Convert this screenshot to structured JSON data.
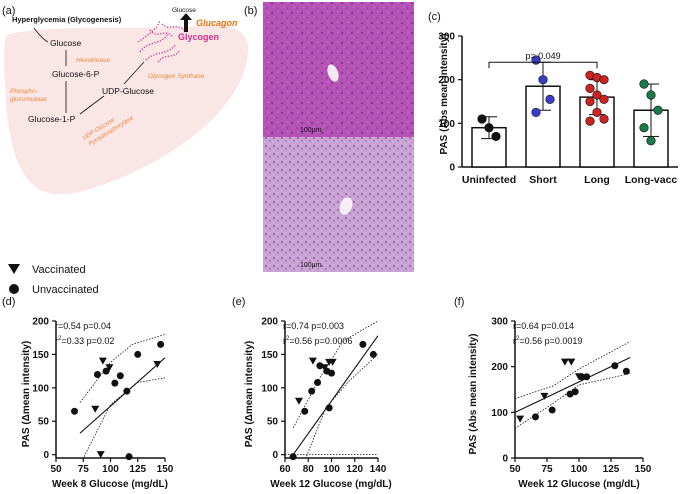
{
  "panel_a": {
    "panel_label": "(a)",
    "title": "Hyperglycemia (Glycogenesis)",
    "glucose_out": "Glucose",
    "glucagon": "Glucagon",
    "glycogen": "Glycogen",
    "glucose": "Glucose",
    "hexokinase": "Hexokinase",
    "g6p": "Glucose-6-P",
    "pgm_1": "Phospho-",
    "pgm_2": "glucomutase",
    "g1p": "Glucose-1-P",
    "udpg": "UDP-Glucose",
    "gs": "Glycogen Synthase",
    "udp_ppase_1": "UDP-Glucose",
    "udp_ppase_2": "Pyrophosphorylase",
    "colors": {
      "liver": "#fbe6e6",
      "enzyme": "#e8883a",
      "glycogen": "#d22f8c",
      "glucagon": "#e8700a"
    }
  },
  "panel_b": {
    "panel_label": "(b)",
    "scale_top": "100µm",
    "scale_bottom": "100µm",
    "colors": {
      "top": "#b552b5",
      "bottom": "#c9a2d4"
    }
  },
  "chart_data": [
    {
      "id": "c",
      "panel_label": "(c)",
      "type": "bar",
      "ylabel": "PAS (Abs mean intensity)",
      "ylim": [
        0,
        300
      ],
      "yticks": [
        0,
        100,
        200,
        300
      ],
      "categories": [
        "Uninfected",
        "Short",
        "Long",
        "Long-vacc"
      ],
      "means": [
        90,
        185,
        160,
        130
      ],
      "sd": [
        25,
        55,
        40,
        60
      ],
      "points": [
        [
          110,
          90,
          70
        ],
        [
          245,
          200,
          155,
          125
        ],
        [
          210,
          205,
          200,
          180,
          165,
          155,
          150,
          125,
          110,
          105
        ],
        [
          190,
          165,
          130,
          90,
          60
        ]
      ],
      "point_colors": [
        "#111111",
        "#3b3bcc",
        "#cc2222",
        "#1a7a4a"
      ],
      "annotation": "p= 0.049",
      "annotation_between": [
        "Uninfected",
        "Long"
      ]
    },
    {
      "id": "d",
      "panel_label": "(d)",
      "type": "scatter",
      "xlabel": "Week 8 Glucose (mg/dL)",
      "ylabel": "PAS (Δmean intensity)",
      "xlim": [
        50,
        150
      ],
      "ylim": [
        -5,
        200
      ],
      "xticks": [
        50,
        75,
        100,
        125,
        150
      ],
      "yticks": [
        0,
        50,
        100,
        150,
        200
      ],
      "stats_1": "r=0.54  p=0.04",
      "stats_2_pre": "r",
      "stats_2_sup": "2",
      "stats_2_post": "=0.33  p=0.02",
      "vaccinated": [
        [
          86,
          68
        ],
        [
          91,
          0
        ],
        [
          93,
          140
        ],
        [
          99,
          130
        ],
        [
          143,
          135
        ]
      ],
      "unvaccinated": [
        [
          67,
          65
        ],
        [
          88,
          120
        ],
        [
          96,
          125
        ],
        [
          104,
          107
        ],
        [
          109,
          118
        ],
        [
          115,
          95
        ],
        [
          117,
          -3
        ],
        [
          125,
          150
        ],
        [
          146,
          165
        ]
      ],
      "fit": [
        [
          72,
          32
        ],
        [
          150,
          145
        ]
      ],
      "ci_upper": [
        [
          72,
          78
        ],
        [
          100,
          138
        ],
        [
          120,
          165
        ],
        [
          150,
          180
        ]
      ],
      "ci_lower": [
        [
          72,
          -15
        ],
        [
          100,
          75
        ],
        [
          125,
          108
        ],
        [
          150,
          115
        ]
      ]
    },
    {
      "id": "e",
      "panel_label": "(e)",
      "type": "scatter",
      "xlabel": "Week 12 Glucose (mg/dL)",
      "ylabel": "PAS (Δmean intensity)",
      "xlim": [
        60,
        140
      ],
      "ylim": [
        -5,
        200
      ],
      "xticks": [
        60,
        80,
        100,
        120,
        140
      ],
      "yticks": [
        0,
        50,
        100,
        150,
        200
      ],
      "stats_1": "r=0.74  p=0.003",
      "stats_2_pre": "r",
      "stats_2_sup": "2",
      "stats_2_post": "=0.56  p=0.0006",
      "vaccinated": [
        [
          72,
          80
        ],
        [
          84,
          140
        ],
        [
          94,
          130
        ],
        [
          98,
          138
        ],
        [
          101,
          138
        ]
      ],
      "unvaccinated": [
        [
          67,
          -3
        ],
        [
          77,
          65
        ],
        [
          83,
          95
        ],
        [
          88,
          108
        ],
        [
          90,
          133
        ],
        [
          96,
          125
        ],
        [
          98,
          70
        ],
        [
          100,
          122
        ],
        [
          127,
          165
        ],
        [
          136,
          150
        ]
      ],
      "fit": [
        [
          67,
          0
        ],
        [
          140,
          178
        ]
      ],
      "ci_upper": [
        [
          67,
          40
        ],
        [
          90,
          115
        ],
        [
          110,
          170
        ],
        [
          140,
          200
        ]
      ],
      "ci_lower": [
        [
          70,
          -40
        ],
        [
          95,
          70
        ],
        [
          115,
          110
        ],
        [
          140,
          150
        ]
      ]
    },
    {
      "id": "f",
      "panel_label": "(f)",
      "type": "scatter",
      "xlabel": "Week 12 Glucose (mg/dL)",
      "ylabel": "PAS (Abs mean intensity)",
      "xlim": [
        50,
        150
      ],
      "ylim": [
        0,
        300
      ],
      "xticks": [
        50,
        75,
        100,
        125,
        150
      ],
      "yticks": [
        0,
        100,
        200,
        300
      ],
      "stats_1": "r=0.64  p=0.014",
      "stats_2_pre": "r",
      "stats_2_sup": "2",
      "stats_2_post": "=0.56  p=0.0019",
      "vaccinated": [
        [
          54,
          85
        ],
        [
          73,
          135
        ],
        [
          89,
          210
        ],
        [
          94,
          210
        ],
        [
          100,
          178
        ]
      ],
      "unvaccinated": [
        [
          66,
          90
        ],
        [
          79,
          105
        ],
        [
          93,
          140
        ],
        [
          97,
          145
        ],
        [
          102,
          178
        ],
        [
          106,
          178
        ],
        [
          128,
          202
        ],
        [
          137,
          190
        ]
      ],
      "fit": [
        [
          50,
          100
        ],
        [
          140,
          220
        ]
      ],
      "ci_upper": [
        [
          50,
          130
        ],
        [
          80,
          158
        ],
        [
          100,
          195
        ],
        [
          140,
          255
        ]
      ],
      "ci_lower": [
        [
          50,
          65
        ],
        [
          80,
          120
        ],
        [
          100,
          160
        ],
        [
          140,
          185
        ]
      ]
    }
  ],
  "legend": {
    "vaccinated": "Vaccinated",
    "unvaccinated": "Unvaccinated"
  }
}
